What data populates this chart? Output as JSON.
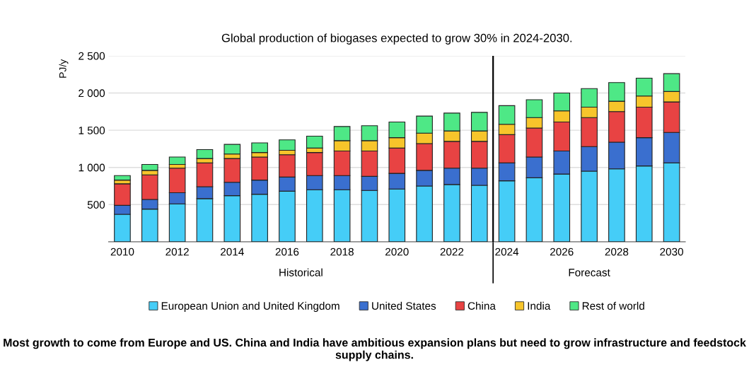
{
  "chart_data": {
    "type": "bar",
    "stacked": true,
    "title": "Global production of biogases expected to grow 30% in 2024-2030.",
    "ylabel": "PJ/y",
    "x": [
      2010,
      2011,
      2012,
      2013,
      2014,
      2015,
      2016,
      2017,
      2018,
      2019,
      2020,
      2021,
      2022,
      2023,
      2024,
      2025,
      2026,
      2027,
      2028,
      2029,
      2030
    ],
    "xlim": [
      2009.5,
      2030.5
    ],
    "xticks": [
      2010,
      2012,
      2014,
      2016,
      2018,
      2020,
      2022,
      2024,
      2026,
      2028,
      2030
    ],
    "ylim": [
      0,
      2500
    ],
    "yticks": [
      {
        "value": 500,
        "label": "500"
      },
      {
        "value": 1000,
        "label": "1 000"
      },
      {
        "value": 1500,
        "label": "1 500"
      },
      {
        "value": 2000,
        "label": "2 000"
      },
      {
        "value": 2500,
        "label": "2 500"
      }
    ],
    "series": [
      {
        "name": "European Union and United Kingdom",
        "color": "#45cdf7",
        "values": [
          370,
          440,
          510,
          580,
          620,
          640,
          680,
          700,
          700,
          690,
          710,
          750,
          770,
          760,
          820,
          860,
          910,
          950,
          980,
          1020,
          1060
        ]
      },
      {
        "name": "United States",
        "color": "#3a6fcf",
        "values": [
          120,
          130,
          150,
          160,
          180,
          190,
          190,
          190,
          190,
          190,
          210,
          210,
          220,
          230,
          240,
          280,
          310,
          330,
          360,
          380,
          410
        ]
      },
      {
        "name": "China",
        "color": "#e84343",
        "values": [
          290,
          330,
          330,
          320,
          320,
          310,
          300,
          310,
          330,
          340,
          340,
          360,
          360,
          360,
          380,
          390,
          390,
          390,
          410,
          410,
          410
        ]
      },
      {
        "name": "India",
        "color": "#f7c52b",
        "values": [
          50,
          60,
          50,
          60,
          60,
          60,
          60,
          60,
          140,
          140,
          140,
          140,
          140,
          140,
          140,
          140,
          150,
          140,
          140,
          150,
          140
        ]
      },
      {
        "name": "Rest of world",
        "color": "#4ee886",
        "values": [
          60,
          80,
          100,
          120,
          130,
          130,
          140,
          160,
          190,
          200,
          210,
          230,
          240,
          250,
          250,
          240,
          240,
          250,
          250,
          240,
          240
        ]
      }
    ],
    "ref_lines": [
      {
        "axis": "x",
        "value": 2023.5,
        "color": "#000000",
        "line_style": "solid"
      }
    ],
    "annotations": [
      "Historical",
      "Forecast",
      "Most growth to come from Europe and US. China and India have ambitious expansion plans but need to grow infrastructure and feedstock supply chains."
    ],
    "grid": "y",
    "legend": "bottom"
  }
}
